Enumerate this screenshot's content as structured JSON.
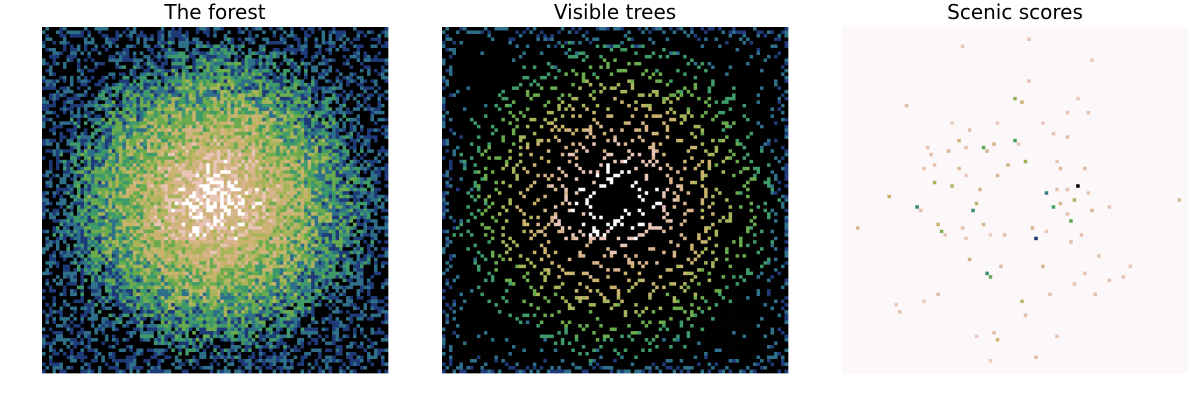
{
  "figure": {
    "background": "#ffffff",
    "grid": false,
    "axes_visible": false,
    "colormap": "gist_earth_like",
    "colormap_stops": [
      "#000000",
      "#1f3a78",
      "#2e6f8a",
      "#3f9a6a",
      "#6aab4e",
      "#a8b45a",
      "#c9b36f",
      "#d7b48c",
      "#e8c5b6",
      "#ffffff"
    ],
    "low_color": "#000000",
    "high_color": "#ffffff"
  },
  "chart_data": [
    {
      "type": "heatmap",
      "title": "The forest",
      "xlabel": "",
      "ylabel": "",
      "grid_size": [
        99,
        99
      ],
      "value_range": [
        0,
        9
      ],
      "pattern": "values peak near the center and fall toward the edges"
    },
    {
      "type": "heatmap",
      "title": "Visible trees",
      "xlabel": "",
      "ylabel": "",
      "grid_size": [
        99,
        99
      ],
      "value_range": [
        0,
        9
      ],
      "pattern": "forest heights where a tree is visible from outside; hidden trees drawn black, leaving a dark central region"
    },
    {
      "type": "heatmap",
      "title": "Scenic scores",
      "xlabel": "",
      "ylabel": "",
      "grid_size": [
        99,
        99
      ],
      "pattern": "mostly near-zero (pale) with sparse higher-scoring trees",
      "annotated_maxima": "two darkest (highest) cells located right of center-top and left of center"
    }
  ]
}
